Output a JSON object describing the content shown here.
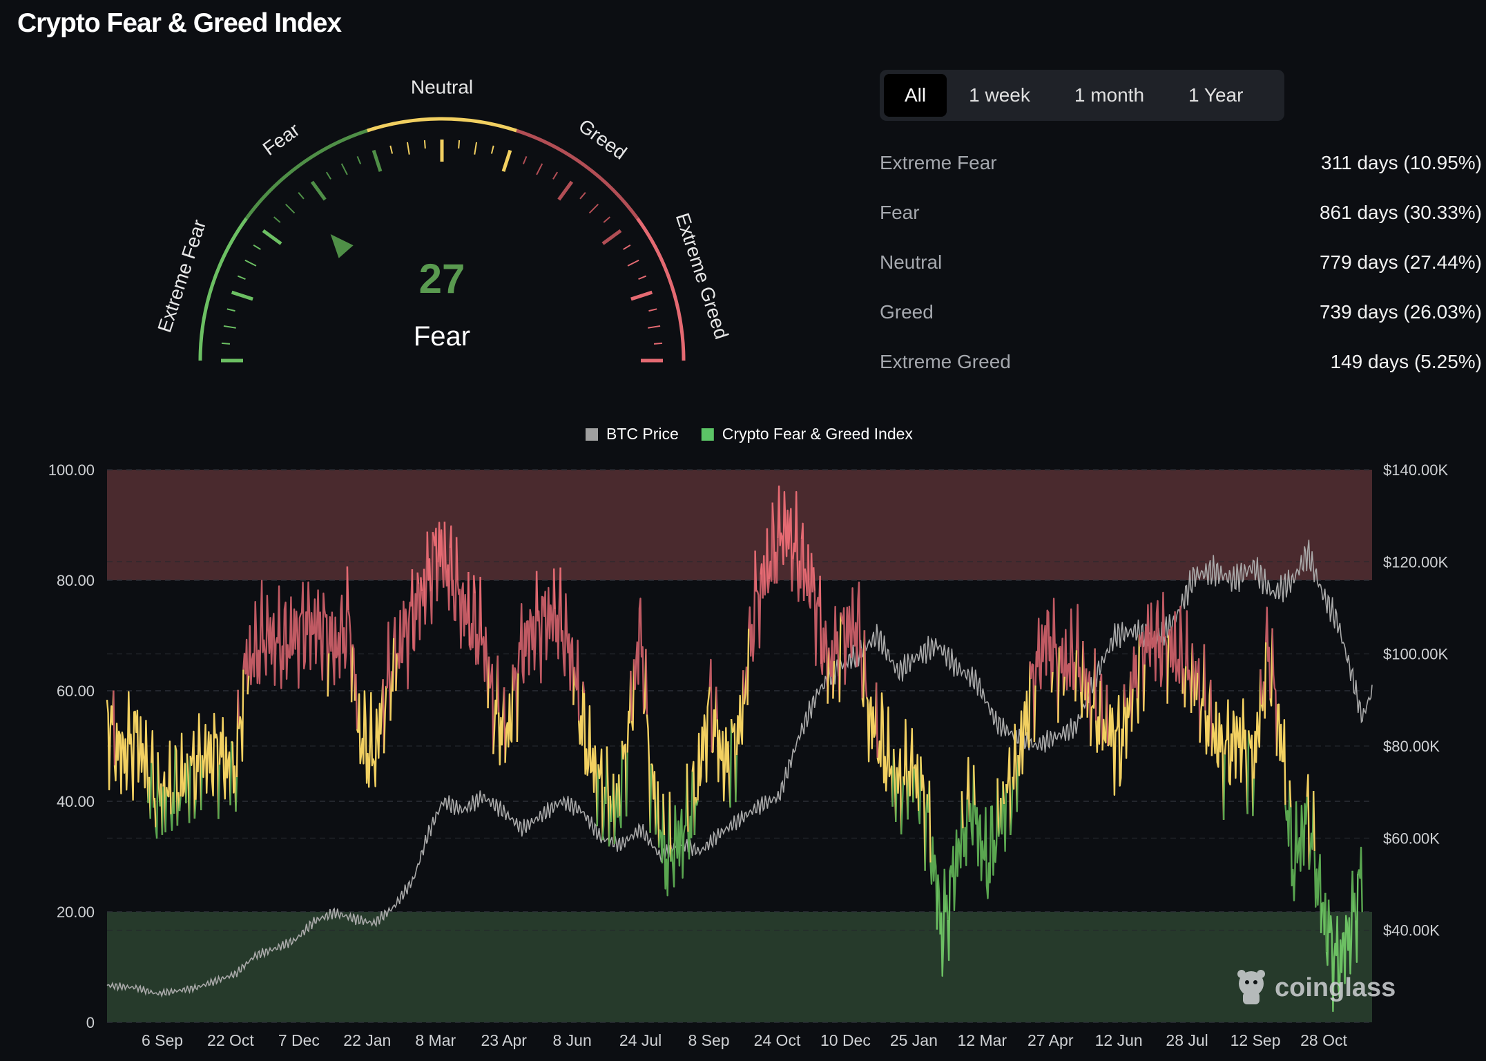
{
  "page": {
    "title": "Crypto Fear & Greed Index"
  },
  "gauge": {
    "value": 27,
    "classification": "Fear",
    "value_color": "#5a9a50",
    "zones": [
      {
        "label": "Extreme Fear",
        "from": 0,
        "to": 20,
        "color": "#6cc063"
      },
      {
        "label": "Fear",
        "from": 20,
        "to": 40,
        "color": "#4f8f47"
      },
      {
        "label": "Neutral",
        "from": 40,
        "to": 60,
        "color": "#f2d061"
      },
      {
        "label": "Greed",
        "from": 60,
        "to": 80,
        "color": "#b24e55"
      },
      {
        "label": "Extreme Greed",
        "from": 80,
        "to": 100,
        "color": "#e56a72"
      }
    ]
  },
  "tabs": {
    "items": [
      {
        "label": "All",
        "active": true
      },
      {
        "label": "1 week",
        "active": false
      },
      {
        "label": "1 month",
        "active": false
      },
      {
        "label": "1 Year",
        "active": false
      }
    ]
  },
  "stats": {
    "rows": [
      {
        "label": "Extreme Fear",
        "value": "311 days (10.95%)"
      },
      {
        "label": "Fear",
        "value": "861 days (30.33%)"
      },
      {
        "label": "Neutral",
        "value": "779 days (27.44%)"
      },
      {
        "label": "Greed",
        "value": "739 days (26.03%)"
      },
      {
        "label": "Extreme Greed",
        "value": "149 days (5.25%)"
      }
    ]
  },
  "watermark": {
    "text": "coinglass"
  },
  "chart_data": {
    "type": "line",
    "legend": [
      {
        "name": "BTC Price",
        "color": "#a0a0a0"
      },
      {
        "name": "Crypto Fear & Greed Index",
        "color": "#5cc466"
      }
    ],
    "legend_position": "top-center",
    "x_tick_labels": [
      "6 Sep",
      "22 Oct",
      "7 Dec",
      "22 Jan",
      "8 Mar",
      "23 Apr",
      "8 Jun",
      "24 Jul",
      "8 Sep",
      "24 Oct",
      "10 Dec",
      "25 Jan",
      "12 Mar",
      "27 Apr",
      "12 Jun",
      "28 Jul",
      "12 Sep",
      "28 Oct"
    ],
    "y_left": {
      "ticks": [
        "0",
        "20.00",
        "40.00",
        "60.00",
        "80.00",
        "100.00"
      ],
      "min": 0,
      "max": 100
    },
    "y_right": {
      "ticks": [
        "$40.00K",
        "$60.00K",
        "$80.00K",
        "$100.00K",
        "$120.00K",
        "$140.00K"
      ],
      "min": 20000,
      "max": 140000
    },
    "bands": [
      {
        "from": 80,
        "to": 100,
        "color": "#4a2a2e"
      },
      {
        "from": 0,
        "to": 20,
        "color": "#263a2b"
      }
    ],
    "grid": true,
    "colors": {
      "extreme_greed": "#e56a72",
      "greed": "#c05a63",
      "neutral": "#f2d061",
      "fear": "#5aa650",
      "extreme_fear": "#6cc063",
      "btc": "#a9a9a9"
    },
    "fear_greed_anchors": [
      [
        0,
        55
      ],
      [
        1.5,
        48
      ],
      [
        3,
        52
      ],
      [
        5,
        40
      ],
      [
        7,
        42
      ],
      [
        9,
        46
      ],
      [
        11,
        49
      ],
      [
        13,
        45
      ],
      [
        14,
        64
      ],
      [
        16,
        70
      ],
      [
        18,
        68
      ],
      [
        20,
        72
      ],
      [
        22,
        71
      ],
      [
        23,
        67
      ],
      [
        24.5,
        73
      ],
      [
        25.5,
        52
      ],
      [
        27,
        48
      ],
      [
        28.5,
        62
      ],
      [
        30,
        70
      ],
      [
        32,
        78
      ],
      [
        33.5,
        86
      ],
      [
        35,
        80
      ],
      [
        36.5,
        73
      ],
      [
        38,
        70
      ],
      [
        39,
        58
      ],
      [
        40.5,
        52
      ],
      [
        42,
        68
      ],
      [
        43.5,
        72
      ],
      [
        45.5,
        74
      ],
      [
        47,
        66
      ],
      [
        48.5,
        50
      ],
      [
        50,
        42
      ],
      [
        51.5,
        38
      ],
      [
        52.5,
        48
      ],
      [
        54,
        72
      ],
      [
        55,
        44
      ],
      [
        56.5,
        30
      ],
      [
        58,
        33
      ],
      [
        59.5,
        40
      ],
      [
        61,
        58
      ],
      [
        62.5,
        46
      ],
      [
        64,
        52
      ],
      [
        65.5,
        75
      ],
      [
        67,
        83
      ],
      [
        68.5,
        90
      ],
      [
        70,
        84
      ],
      [
        71.5,
        78
      ],
      [
        73,
        64
      ],
      [
        74.5,
        70
      ],
      [
        76,
        72
      ],
      [
        77,
        56
      ],
      [
        78.5,
        50
      ],
      [
        80,
        42
      ],
      [
        81.5,
        46
      ],
      [
        83,
        38
      ],
      [
        84.5,
        16
      ],
      [
        86,
        30
      ],
      [
        87.5,
        40
      ],
      [
        89,
        28
      ],
      [
        90.5,
        38
      ],
      [
        92,
        45
      ],
      [
        93.5,
        60
      ],
      [
        95,
        70
      ],
      [
        96.5,
        64
      ],
      [
        98,
        66
      ],
      [
        99.5,
        58
      ],
      [
        101,
        54
      ],
      [
        102.5,
        50
      ],
      [
        104,
        62
      ],
      [
        105.5,
        70
      ],
      [
        107,
        68
      ],
      [
        108.5,
        66
      ],
      [
        110,
        62
      ],
      [
        111.5,
        55
      ],
      [
        113,
        48
      ],
      [
        114.5,
        52
      ],
      [
        116,
        46
      ],
      [
        117.5,
        68
      ],
      [
        119,
        48
      ],
      [
        120,
        28
      ],
      [
        121.5,
        38
      ],
      [
        123,
        20
      ],
      [
        124.5,
        10
      ],
      [
        126,
        18
      ],
      [
        127,
        27
      ]
    ],
    "btc_anchors": [
      [
        0,
        28000
      ],
      [
        3,
        27500
      ],
      [
        5,
        26200
      ],
      [
        7,
        26800
      ],
      [
        9,
        27500
      ],
      [
        11,
        29000
      ],
      [
        13,
        30500
      ],
      [
        15,
        34500
      ],
      [
        17,
        36000
      ],
      [
        19,
        37800
      ],
      [
        21,
        42000
      ],
      [
        23,
        43800
      ],
      [
        25,
        42500
      ],
      [
        27,
        41500
      ],
      [
        29,
        45000
      ],
      [
        31,
        51000
      ],
      [
        32.5,
        61000
      ],
      [
        34,
        68000
      ],
      [
        36,
        66000
      ],
      [
        38,
        69000
      ],
      [
        40,
        66000
      ],
      [
        42,
        62000
      ],
      [
        44,
        65000
      ],
      [
        46,
        68000
      ],
      [
        48,
        66000
      ],
      [
        50,
        60000
      ],
      [
        52,
        58500
      ],
      [
        54,
        62000
      ],
      [
        56,
        56000
      ],
      [
        58,
        59000
      ],
      [
        60,
        57000
      ],
      [
        62,
        61000
      ],
      [
        64,
        64000
      ],
      [
        66,
        67000
      ],
      [
        68,
        69000
      ],
      [
        70,
        82000
      ],
      [
        72,
        92000
      ],
      [
        74,
        97000
      ],
      [
        76,
        100000
      ],
      [
        78,
        104000
      ],
      [
        80,
        96000
      ],
      [
        82,
        99500
      ],
      [
        84,
        102000
      ],
      [
        86,
        97000
      ],
      [
        88,
        94000
      ],
      [
        90,
        85000
      ],
      [
        92,
        82000
      ],
      [
        94,
        80000
      ],
      [
        96,
        82000
      ],
      [
        98,
        84000
      ],
      [
        100,
        95000
      ],
      [
        102,
        104000
      ],
      [
        104,
        105000
      ],
      [
        106,
        103000
      ],
      [
        108,
        107000
      ],
      [
        110,
        117000
      ],
      [
        112,
        118000
      ],
      [
        114,
        116000
      ],
      [
        116,
        119000
      ],
      [
        118,
        113000
      ],
      [
        120,
        116000
      ],
      [
        121.5,
        122000
      ],
      [
        123,
        113000
      ],
      [
        124.5,
        107000
      ],
      [
        126,
        95000
      ],
      [
        127,
        86000
      ],
      [
        128,
        92000
      ]
    ]
  }
}
